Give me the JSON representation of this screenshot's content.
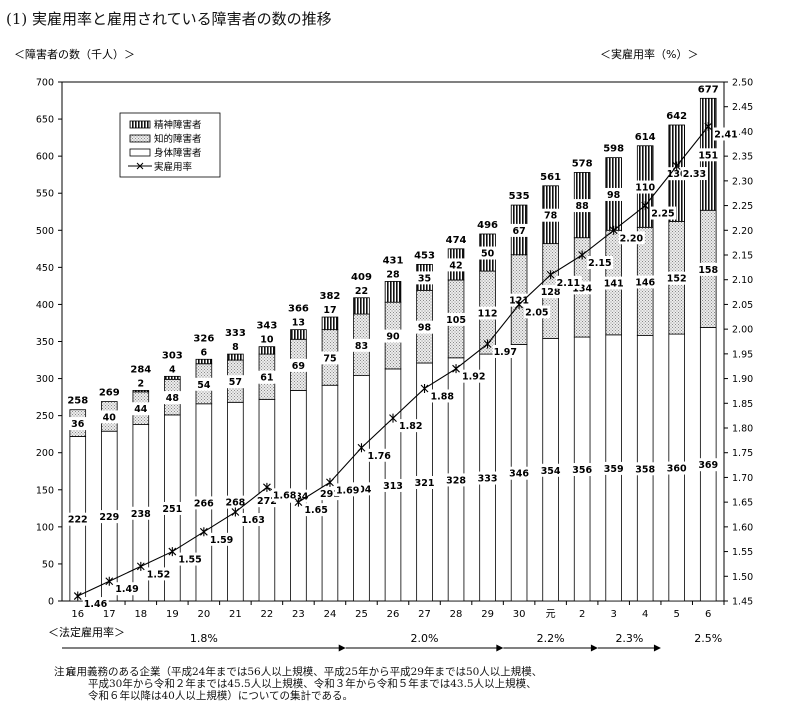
{
  "title": "(1) 実雇用率と雇用されている障害者の数の推移",
  "notes": {
    "label": "注1：",
    "lines": [
      "雇用義務のある企業（平成24年までは56人以上規模、平成25年から平成29年までは50人以上規模、",
      "平成30年から令和２年までは45.5人以上規模、令和３年から令和５年までは43.5人以上規模、",
      "令和６年以降は40人以上規模）についての集計である。"
    ]
  },
  "chart_data": {
    "type": "bar",
    "stacked": true,
    "left_axis_label": "＜障害者の数（千人）＞",
    "right_axis_label": "＜実雇用率（%）＞",
    "ylim": [
      0,
      700
    ],
    "yticks": [
      0,
      50,
      100,
      150,
      200,
      250,
      300,
      350,
      400,
      450,
      500,
      550,
      600,
      650,
      700
    ],
    "y2lim": [
      1.45,
      2.5
    ],
    "y2ticks": [
      "1.45",
      "1.50",
      "1.55",
      "1.60",
      "1.65",
      "1.70",
      "1.75",
      "1.80",
      "1.85",
      "1.90",
      "1.95",
      "2.00",
      "2.05",
      "2.10",
      "2.15",
      "2.20",
      "2.25",
      "2.30",
      "2.35",
      "2.40",
      "2.45",
      "2.50"
    ],
    "categories": [
      "16",
      "17",
      "18",
      "19",
      "20",
      "21",
      "22",
      "23",
      "24",
      "25",
      "26",
      "27",
      "28",
      "29",
      "30",
      "元",
      "2",
      "3",
      "4",
      "5",
      "6"
    ],
    "series": [
      {
        "name": "身体障害者",
        "color": "#ffffff",
        "values": [
          222,
          229,
          238,
          251,
          266,
          268,
          272,
          284,
          291,
          304,
          313,
          321,
          328,
          333,
          346,
          354,
          356,
          359,
          358,
          360,
          369
        ]
      },
      {
        "name": "知的障害者",
        "color": "#dcdcdc",
        "values": [
          36,
          40,
          44,
          48,
          54,
          57,
          61,
          69,
          75,
          83,
          90,
          98,
          105,
          112,
          121,
          128,
          134,
          141,
          146,
          152,
          158
        ]
      },
      {
        "name": "精神障害者",
        "color": "#555555",
        "values": [
          0,
          0,
          2,
          4,
          6,
          8,
          10,
          13,
          17,
          22,
          28,
          35,
          42,
          50,
          67,
          78,
          88,
          98,
          110,
          130,
          151
        ]
      }
    ],
    "seg_labels": {
      "身体障害者": [
        "222",
        "229",
        "238",
        "251",
        "266",
        "268",
        "272",
        "284",
        "291",
        "304",
        "313",
        "321",
        "328",
        "333",
        "346",
        "354",
        "356",
        "359",
        "358",
        "360",
        "369"
      ],
      "知的障害者": [
        "36",
        "40",
        "44",
        "48",
        "54",
        "57",
        "61",
        "69",
        "75",
        "83",
        "90",
        "98",
        "105",
        "112",
        "121",
        "128",
        "134",
        "141",
        "146",
        "152",
        "158"
      ],
      "精神障害者": [
        "",
        "",
        "2",
        "4",
        "6",
        "8",
        "10",
        "13",
        "17",
        "22",
        "28",
        "35",
        "42",
        "50",
        "67",
        "78",
        "88",
        "98",
        "110",
        "130",
        "151"
      ]
    },
    "totals": [
      "258",
      "269",
      "284",
      "303",
      "326",
      "333",
      "343",
      "366",
      "382",
      "409",
      "431",
      "453",
      "474",
      "496",
      "535",
      "561",
      "578",
      "598",
      "614",
      "642",
      "677"
    ],
    "rate": {
      "name": "実雇用率",
      "values": [
        1.46,
        1.49,
        1.52,
        1.55,
        1.59,
        1.63,
        1.68,
        1.65,
        1.69,
        1.76,
        1.82,
        1.88,
        1.92,
        1.97,
        2.05,
        2.11,
        2.15,
        2.2,
        2.25,
        2.33,
        2.41
      ]
    },
    "statutory": {
      "label": "＜法定雇用率＞",
      "periods": [
        {
          "text": "1.8%",
          "start": 0,
          "end": 9
        },
        {
          "text": "2.0%",
          "start": 9,
          "end": 14
        },
        {
          "text": "2.2%",
          "start": 14,
          "end": 17
        },
        {
          "text": "2.3%",
          "start": 17,
          "end": 19
        },
        {
          "text": "2.5%",
          "start": 20,
          "end": 20
        }
      ]
    },
    "legend_position": "top-left",
    "grid": false
  }
}
